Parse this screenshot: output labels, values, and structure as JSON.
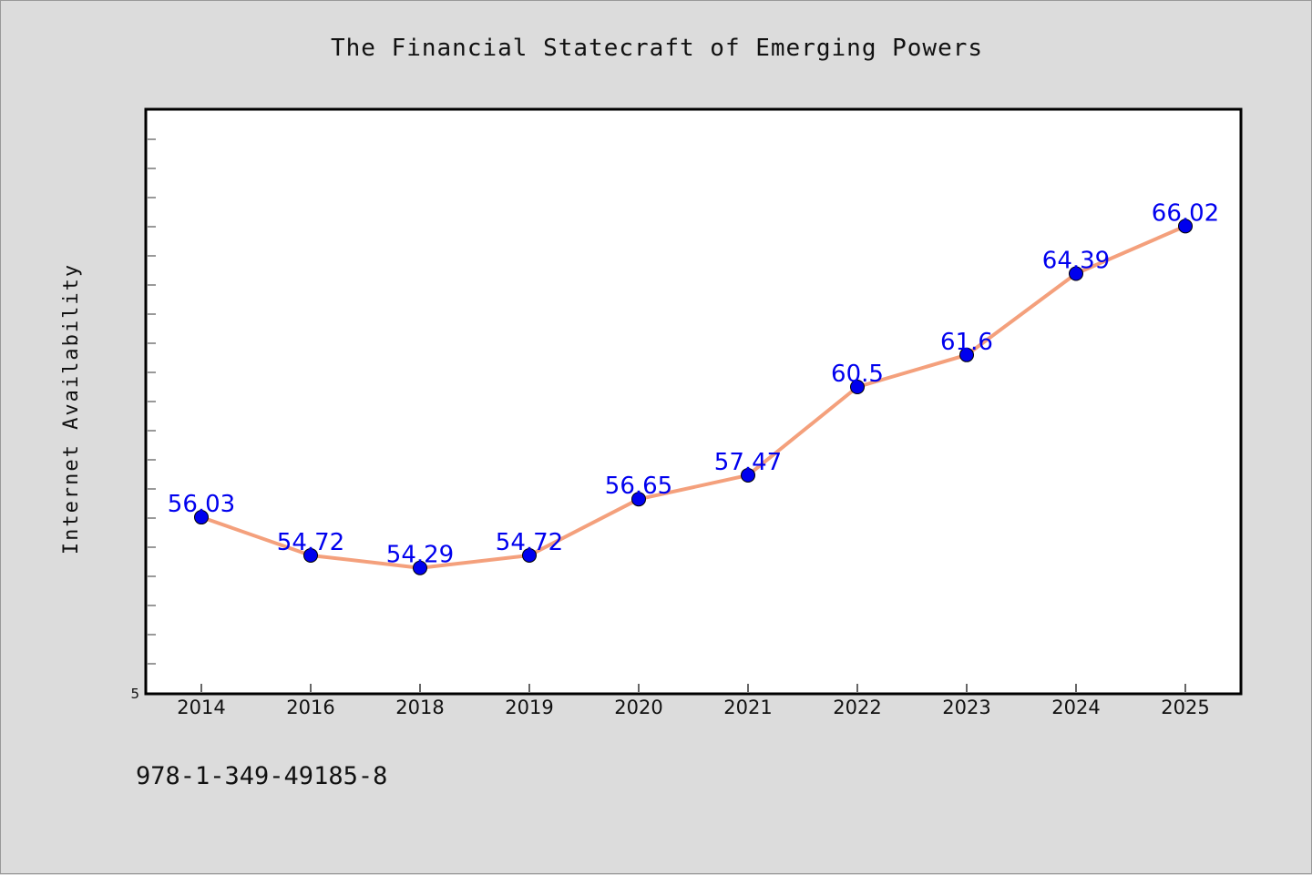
{
  "chart_data": {
    "type": "line",
    "title": "The Financial Statecraft of Emerging Powers",
    "xlabel": "",
    "ylabel": "Internet Availability",
    "categories": [
      "2014",
      "2016",
      "2018",
      "2019",
      "2020",
      "2021",
      "2022",
      "2023",
      "2024",
      "2025"
    ],
    "series": [
      {
        "values": [
          56.03,
          54.72,
          54.29,
          54.72,
          56.65,
          57.47,
          60.5,
          61.6,
          64.39,
          66.02
        ]
      }
    ],
    "data_labels": [
      "56.03",
      "54.72",
      "54.29",
      "54.72",
      "56.65",
      "57.47",
      "60.5",
      "61.6",
      "64.39",
      "66.02"
    ],
    "y_tick_labels": [
      "5"
    ],
    "ylim": [
      50,
      70
    ],
    "grid": false,
    "line_color": "#f4a07c",
    "marker_color": "#0000ee",
    "label_color": "#0000ee"
  },
  "footer": {
    "isbn": "978-1-349-49185-8"
  }
}
